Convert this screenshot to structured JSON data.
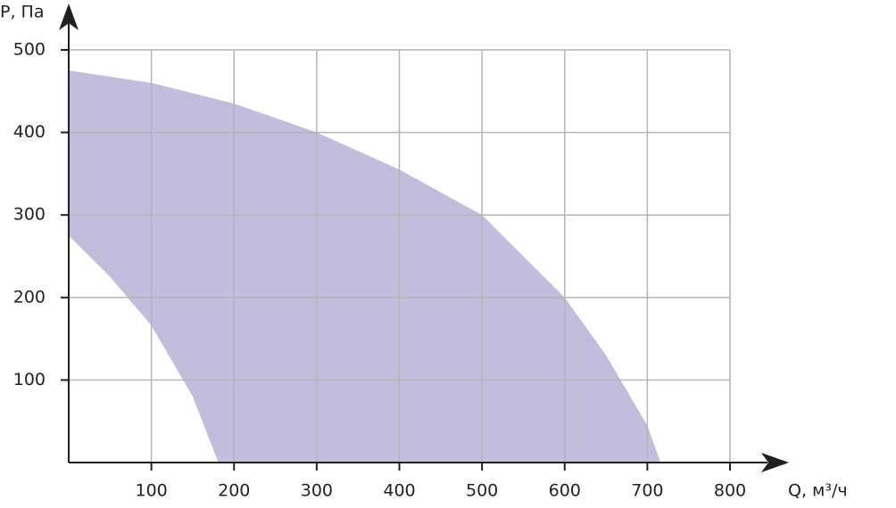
{
  "chart_data": {
    "type": "area",
    "xlabel": "Q, м³/ч",
    "ylabel": "P, Па",
    "xlim": [
      0,
      800
    ],
    "ylim": [
      0,
      500
    ],
    "xticks": [
      100,
      200,
      300,
      400,
      500,
      600,
      700,
      800
    ],
    "yticks": [
      100,
      200,
      300,
      400,
      500
    ],
    "grid": true,
    "series": [
      {
        "color": "#c1bedc",
        "x": [
          0,
          100,
          200,
          300,
          400,
          500,
          600,
          650,
          700,
          716
        ],
        "values": [
          475,
          460,
          435,
          400,
          355,
          300,
          200,
          130,
          45,
          0
        ]
      },
      {
        "color": "#ffffff",
        "x": [
          0,
          50,
          100,
          150,
          181
        ],
        "values": [
          275,
          225,
          166,
          80,
          0
        ]
      }
    ]
  }
}
